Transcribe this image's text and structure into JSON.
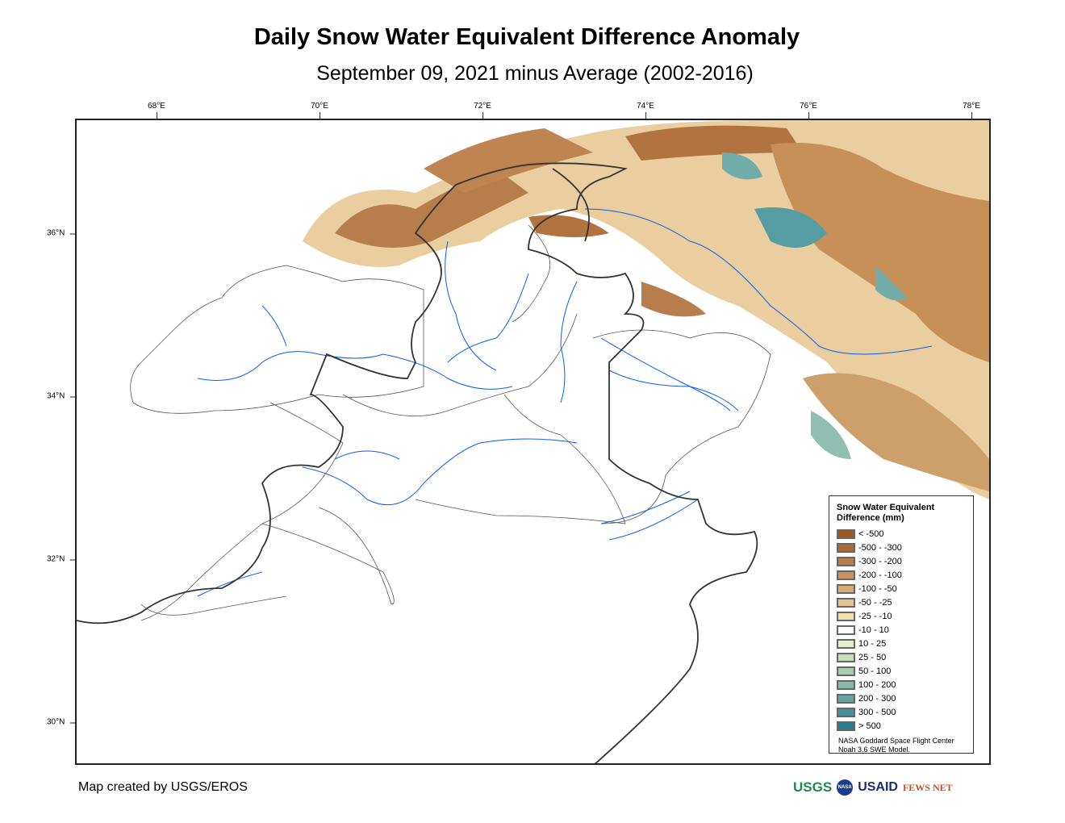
{
  "title": "Daily Snow Water Equivalent Difference Anomaly",
  "subtitle": "September 09, 2021 minus Average (2002-2016)",
  "axes": {
    "longitude_ticks": [
      "68°E",
      "70°E",
      "72°E",
      "74°E",
      "76°E",
      "78°E"
    ],
    "latitude_ticks": [
      "36°N",
      "34°N",
      "32°N",
      "30°N"
    ]
  },
  "legend": {
    "title": "Snow Water Equivalent Difference (mm)",
    "items": [
      {
        "label": "< -500",
        "color": "#a0561e"
      },
      {
        "label": "-500 - -300",
        "color": "#ad6a32"
      },
      {
        "label": "-300 - -200",
        "color": "#ba7f46"
      },
      {
        "label": "-200 - -100",
        "color": "#c8955c"
      },
      {
        "label": "-100 - -50",
        "color": "#d6ab74"
      },
      {
        "label": "-50 - -25",
        "color": "#e4c590"
      },
      {
        "label": "-25 - -10",
        "color": "#f1e2ac"
      },
      {
        "label": "-10 - 10",
        "color": "#ffffff"
      },
      {
        "label": "10 - 25",
        "color": "#e6f0c8"
      },
      {
        "label": "25 - 50",
        "color": "#c8dfba"
      },
      {
        "label": "50 - 100",
        "color": "#a5cdb0"
      },
      {
        "label": "100 - 200",
        "color": "#85b8a8"
      },
      {
        "label": "200 - 300",
        "color": "#64a5a0"
      },
      {
        "label": "300 - 500",
        "color": "#44929a"
      },
      {
        "label": "> 500",
        "color": "#237f8f"
      }
    ],
    "credit_line1": "NASA Goddard Space Flight Center",
    "credit_line2": "Noah 3.6 SWE Model."
  },
  "footer": "Map created by USGS/EROS",
  "logos": [
    "USGS",
    "NASA",
    "USAID",
    "FEWS NET"
  ]
}
